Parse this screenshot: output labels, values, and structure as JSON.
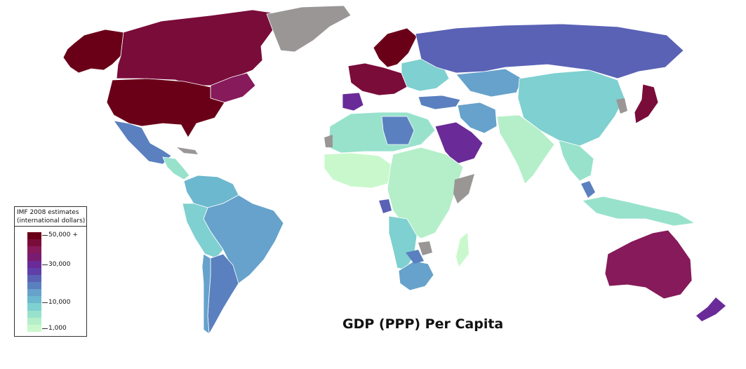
{
  "title": "GDP (PPP) Per Capita",
  "legend": {
    "heading_line1": "IMF 2008 estimates",
    "heading_line2": "(international dollars)",
    "tick_labels": [
      "50,000 +",
      "30,000",
      "10,000",
      "1,000"
    ],
    "ramp_colors": [
      "#6a0018",
      "#7a0c3a",
      "#861a5a",
      "#7a1b72",
      "#6a2a98",
      "#5f3fa8",
      "#5a62b6",
      "#5a80c0",
      "#66a2cb",
      "#6cb8cf",
      "#7fd0d0",
      "#98e2cc",
      "#b4efc9",
      "#c9f8cc"
    ]
  },
  "colors": {
    "no_data": "#9a9696",
    "ocean": "#ffffff",
    "border": "#ffffff"
  }
}
